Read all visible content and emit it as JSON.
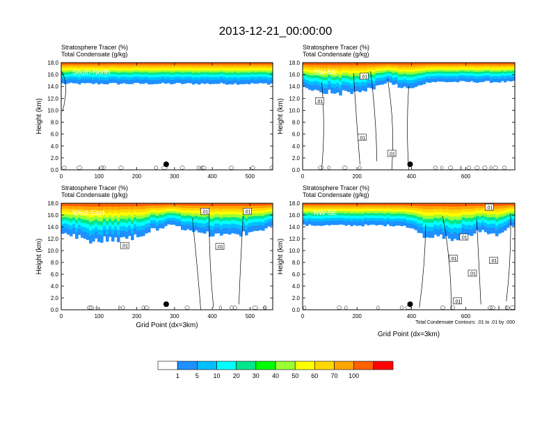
{
  "title": "2013-12-21_00:00:00",
  "chart_data": [
    {
      "type": "heatmap",
      "panel": "top-left",
      "title_lines": [
        "Stratosphere Tracer   (%)",
        "Total Condensate   (g/kg)"
      ],
      "panel_label": "South-North",
      "ylabel": "Height (km)",
      "xlabel": "",
      "xlim": [
        0,
        560
      ],
      "ylim": [
        0,
        18
      ],
      "xticks": [
        "0",
        "100",
        "200",
        "300",
        "400",
        "500"
      ],
      "xtick_values": [
        0,
        100,
        200,
        300,
        400,
        500
      ],
      "yticks": [
        "0.0",
        "2.0",
        "4.0",
        "6.0",
        "8.0",
        "10.0",
        "12.0",
        "14.0",
        "16.0",
        "18.0"
      ],
      "tracer_base_km": 14.5,
      "contour_labels": [],
      "marker_x": 278
    },
    {
      "type": "heatmap",
      "panel": "top-right",
      "title_lines": [
        "Stratosphere Tracer   (%)",
        "Total Condensate   (g/kg)"
      ],
      "panel_label": "SW-NE",
      "ylabel": "Height (km)",
      "xlabel": "",
      "xlim": [
        0,
        780
      ],
      "ylim": [
        0,
        18
      ],
      "xticks": [
        "0",
        "200",
        "400",
        "600"
      ],
      "xtick_values": [
        0,
        200,
        400,
        600
      ],
      "yticks": [
        "0.0",
        "2.0",
        "4.0",
        "6.0",
        "8.0",
        "10.0",
        "12.0",
        "14.0",
        "16.0",
        "18.0"
      ],
      "tracer_base_km": 14.8,
      "contour_labels": [
        ".01",
        ".01",
        ".01",
        ".01"
      ],
      "marker_x": 395
    },
    {
      "type": "heatmap",
      "panel": "bottom-left",
      "title_lines": [
        "Stratosphere Tracer   (%)",
        "Total Condensate   (g/kg)"
      ],
      "panel_label": "West-East",
      "ylabel": "Height (km)",
      "xlabel": "Grid Point (dx=3km)",
      "xlim": [
        0,
        560
      ],
      "ylim": [
        0,
        18
      ],
      "xticks": [
        "0",
        "100",
        "200",
        "300",
        "400",
        "500"
      ],
      "xtick_values": [
        0,
        100,
        200,
        300,
        400,
        500
      ],
      "yticks": [
        "0.0",
        "2.0",
        "4.0",
        "6.0",
        "8.0",
        "10.0",
        "12.0",
        "14.0",
        "16.0",
        "18.0"
      ],
      "tracer_base_km": 14.3,
      "contour_labels": [
        ".01",
        ".01",
        ".01",
        ".01"
      ],
      "marker_x": 278
    },
    {
      "type": "heatmap",
      "panel": "bottom-right",
      "title_lines": [
        "Stratosphere Tracer   (%)",
        "Total Condensate   (g/kg)"
      ],
      "panel_label": "NW-SE",
      "ylabel": "Height (km)",
      "xlabel": "Grid Point (dx=3km)",
      "xlim": [
        0,
        780
      ],
      "ylim": [
        0,
        18
      ],
      "xticks": [
        "0",
        "200",
        "400",
        "600"
      ],
      "xtick_values": [
        0,
        200,
        400,
        600
      ],
      "yticks": [
        "0.0",
        "2.0",
        "4.0",
        "6.0",
        "8.0",
        "10.0",
        "12.0",
        "14.0",
        "16.0",
        "18.0"
      ],
      "tracer_base_km": 14.3,
      "contour_labels": [
        ".01",
        ".01",
        ".01",
        ".01",
        ".01",
        ".01"
      ],
      "marker_x": 395,
      "footnote": "Total Condensate Contours: .01 to .01 by .000"
    }
  ],
  "colorbar": {
    "colors": [
      "#ffffff",
      "#1e90ff",
      "#00bfff",
      "#00ffff",
      "#00e68c",
      "#00ff00",
      "#9aff32",
      "#ffff00",
      "#ffd700",
      "#ffa500",
      "#ff6000",
      "#ff0000"
    ],
    "labels": [
      "1",
      "5",
      "10",
      "20",
      "30",
      "40",
      "50",
      "60",
      "70",
      "100"
    ]
  }
}
